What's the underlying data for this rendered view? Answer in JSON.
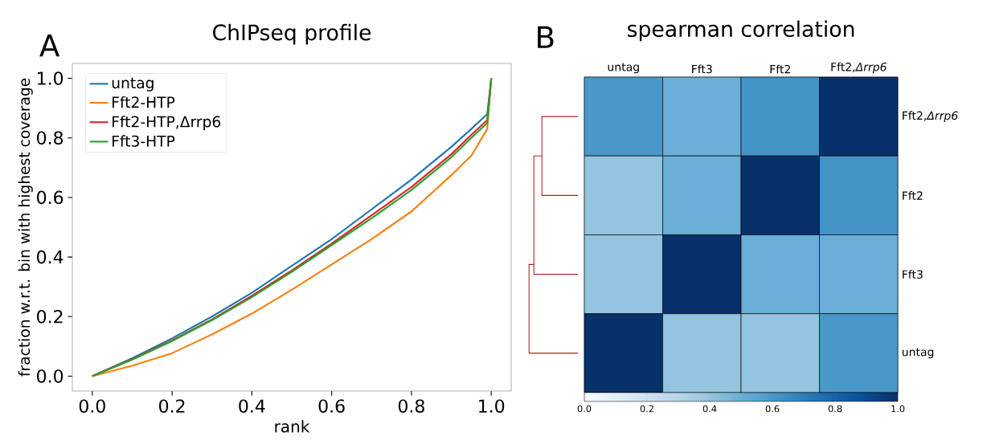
{
  "chart_data": [
    {
      "type": "line",
      "title": "ChIPseq profile",
      "xlabel": "rank",
      "ylabel": "fraction w.r.t. bin with highest coverage",
      "annotations": [
        "A"
      ],
      "x": [
        0,
        0.1,
        0.2,
        0.3,
        0.4,
        0.5,
        0.6,
        0.7,
        0.8,
        0.9,
        0.95,
        0.99,
        1.0
      ],
      "series": [
        {
          "name": "untag",
          "color": "#1f77b4",
          "values": [
            0,
            0.06,
            0.127,
            0.2,
            0.28,
            0.37,
            0.46,
            0.56,
            0.66,
            0.77,
            0.83,
            0.88,
            1.0
          ]
        },
        {
          "name": "Fft2-HTP",
          "color": "#ff7f0e",
          "values": [
            0,
            0.035,
            0.077,
            0.14,
            0.21,
            0.29,
            0.375,
            0.46,
            0.553,
            0.675,
            0.74,
            0.83,
            1.0
          ]
        },
        {
          "name": "Fft2-HTP,Δrrp6",
          "color": "#d62728",
          "values": [
            0,
            0.057,
            0.12,
            0.19,
            0.27,
            0.355,
            0.445,
            0.54,
            0.635,
            0.745,
            0.81,
            0.86,
            1.0
          ]
        },
        {
          "name": "Fft3-HTP",
          "color": "#2ca02c",
          "values": [
            0,
            0.055,
            0.118,
            0.188,
            0.265,
            0.35,
            0.44,
            0.53,
            0.625,
            0.735,
            0.8,
            0.85,
            1.0
          ]
        }
      ],
      "xlim": [
        -0.05,
        1.05
      ],
      "ylim": [
        -0.05,
        1.05
      ],
      "xticks": [
        {
          "value": 0,
          "label": "0.0"
        },
        0.2,
        0.4,
        0.6,
        0.8,
        {
          "value": 1,
          "label": "1.0"
        }
      ],
      "yticks": [
        {
          "value": 0,
          "label": "0.0"
        },
        0.2,
        0.4,
        0.6,
        0.8,
        {
          "value": 1,
          "label": "1.0"
        }
      ],
      "grid": false,
      "legend": "top left",
      "marker": "none",
      "line_style": "solid"
    },
    {
      "type": "heatmap",
      "title": "spearman correlation",
      "annotations": [
        "B"
      ],
      "categories": [
        "untag",
        "Fft3",
        "Fft2",
        "Fft2,*Δrrp6*"
      ],
      "y_categories": [
        "Fft2,*Δrrp6*",
        "Fft2",
        "Fft3",
        "untag"
      ],
      "cells": [
        [
          0.6,
          0.5,
          0.62,
          1.0
        ],
        [
          0.4,
          0.5,
          1.0,
          0.62
        ],
        [
          0.4,
          1.0,
          0.5,
          0.5
        ],
        [
          1.0,
          0.4,
          0.4,
          0.6
        ]
      ],
      "clim": [
        0,
        1
      ],
      "cticks": [
        {
          "value": 0,
          "label": "0.0"
        },
        0.2,
        0.4,
        0.6,
        0.8,
        {
          "value": 1,
          "label": "1.0"
        }
      ]
    }
  ]
}
